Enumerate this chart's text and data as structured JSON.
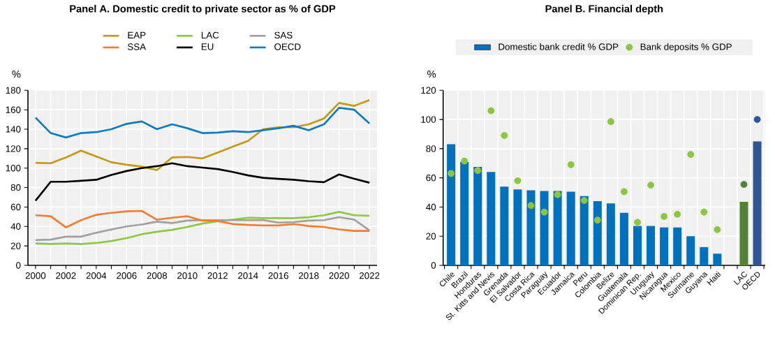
{
  "chart_data": [
    {
      "type": "line",
      "title": "Panel A. Domestic credit to private sector as % of GDP",
      "ylabel": "%",
      "x": [
        2000,
        2001,
        2002,
        2003,
        2004,
        2005,
        2006,
        2007,
        2008,
        2009,
        2010,
        2011,
        2012,
        2013,
        2014,
        2015,
        2016,
        2017,
        2018,
        2019,
        2020,
        2021,
        2022
      ],
      "series": [
        {
          "name": "EAP",
          "color": "#c49a14",
          "values": [
            105.5,
            105,
            111,
            118,
            112,
            106,
            103.5,
            101.5,
            98,
            111,
            111.5,
            110,
            116,
            122,
            128,
            140,
            142,
            142,
            145,
            151,
            167,
            164,
            170
          ]
        },
        {
          "name": "LAC",
          "color": "#8cc841",
          "values": [
            22.5,
            22,
            22.5,
            22,
            23,
            25,
            28,
            32,
            34.5,
            36.5,
            39.5,
            43,
            45.5,
            47,
            49,
            48.5,
            48.5,
            48.5,
            49.5,
            51.5,
            55,
            51.5,
            51
          ]
        },
        {
          "name": "SAS",
          "color": "#a0a0a0",
          "values": [
            26,
            26.5,
            29.5,
            29.5,
            33.5,
            37,
            40,
            42,
            45,
            43.5,
            46,
            46.5,
            46.5,
            46.5,
            46.5,
            46.5,
            44,
            44.5,
            46,
            46.5,
            49.5,
            47,
            36
          ]
        },
        {
          "name": "SSA",
          "color": "#f47d30",
          "values": [
            51.5,
            50.5,
            39,
            46.5,
            52,
            54,
            55.5,
            56,
            47,
            49,
            50.5,
            46,
            45.5,
            42.5,
            41.5,
            41,
            41,
            42.5,
            40.5,
            39.5,
            37,
            35.5,
            35.5
          ]
        },
        {
          "name": "EU",
          "color": "#000000",
          "values": [
            66.5,
            86,
            86,
            87,
            88,
            93,
            97,
            100,
            102,
            105,
            102,
            100.5,
            99,
            96,
            92.5,
            90,
            89,
            88,
            86.5,
            85.5,
            93.5,
            89,
            85
          ]
        },
        {
          "name": "OECD",
          "color": "#0c7bc0",
          "values": [
            152,
            136,
            131.5,
            136,
            137,
            140,
            145.5,
            148,
            140,
            145,
            141,
            136,
            136.5,
            138,
            137,
            139,
            141,
            143.5,
            139,
            145,
            162,
            160,
            146
          ]
        }
      ],
      "xlim": [
        1999.5,
        2022.5
      ],
      "xticks": [
        2000,
        {
          "value": 2001,
          "label": null
        },
        2002,
        {
          "value": 2003,
          "label": null
        },
        2004,
        {
          "value": 2005,
          "label": null
        },
        2006,
        {
          "value": 2007,
          "label": null
        },
        2008,
        {
          "value": 2009,
          "label": null
        },
        2010,
        {
          "value": 2011,
          "label": null
        },
        2012,
        {
          "value": 2013,
          "label": null
        },
        2014,
        {
          "value": 2015,
          "label": null
        },
        2016,
        {
          "value": 2017,
          "label": null
        },
        2018,
        {
          "value": 2019,
          "label": null
        },
        2020,
        {
          "value": 2021,
          "label": null
        },
        2022
      ],
      "ylim": [
        0,
        180
      ],
      "yticks": [
        0,
        20,
        40,
        60,
        80,
        100,
        120,
        140,
        160,
        180
      ],
      "grid": true,
      "legend": "top"
    },
    {
      "type": "bar",
      "title": "Panel B. Financial depth",
      "ylabel": "%",
      "categories": [
        "Chile",
        "Brazil",
        "Honduras",
        "St. Kitts and Nevis",
        "Grenada",
        "El Salvador",
        "Costa Rica",
        "Paraguay",
        "Ecuador",
        "Jamaica",
        "Peru",
        "Colombia",
        "Belize",
        "Guatemala",
        "Dominican Rep.",
        "Uruguay",
        "Nicaragua",
        "Mexico",
        "Suriname",
        "Guyana",
        "Haiti",
        null,
        "LAC",
        "OECD"
      ],
      "series": [
        {
          "name": "Domestic bank credit % GDP",
          "type": "bar",
          "color": "#0071bc",
          "colors": [
            "#0071bc",
            "#0071bc",
            "#0071bc",
            "#0071bc",
            "#0071bc",
            "#0071bc",
            "#0071bc",
            "#0071bc",
            "#0071bc",
            "#0071bc",
            "#0071bc",
            "#0071bc",
            "#0071bc",
            "#0071bc",
            "#0071bc",
            "#0071bc",
            "#0071bc",
            "#0071bc",
            "#0071bc",
            "#0071bc",
            "#0071bc",
            "#0071bc",
            "#548235",
            "#2f5597"
          ],
          "values": [
            83,
            71,
            67.5,
            64,
            54,
            52,
            51.5,
            51,
            51,
            50.5,
            47.5,
            44,
            42.5,
            36,
            27,
            27,
            26,
            26,
            20,
            12.5,
            8,
            null,
            43.5,
            85
          ]
        },
        {
          "name": "Bank deposits % GDP",
          "type": "scatter",
          "color": "#8cc63f",
          "colors": [
            "#8cc63f",
            "#8cc63f",
            "#8cc63f",
            "#8cc63f",
            "#8cc63f",
            "#8cc63f",
            "#8cc63f",
            "#8cc63f",
            "#8cc63f",
            "#8cc63f",
            "#8cc63f",
            "#8cc63f",
            "#8cc63f",
            "#8cc63f",
            "#8cc63f",
            "#8cc63f",
            "#8cc63f",
            "#8cc63f",
            "#8cc63f",
            "#8cc63f",
            "#8cc63f",
            "#8cc63f",
            "#548235",
            "#2f5597"
          ],
          "values": [
            63,
            71.5,
            65,
            106,
            89,
            58,
            41,
            36.5,
            48.5,
            69,
            44.5,
            31,
            98.5,
            50.5,
            29.5,
            55,
            33.5,
            35,
            76,
            36.5,
            24.5,
            null,
            55.5,
            100
          ]
        }
      ],
      "ylim": [
        0,
        120
      ],
      "yticks": [
        0,
        20,
        40,
        60,
        80,
        100,
        120
      ],
      "grid": true,
      "legend": "top"
    }
  ]
}
